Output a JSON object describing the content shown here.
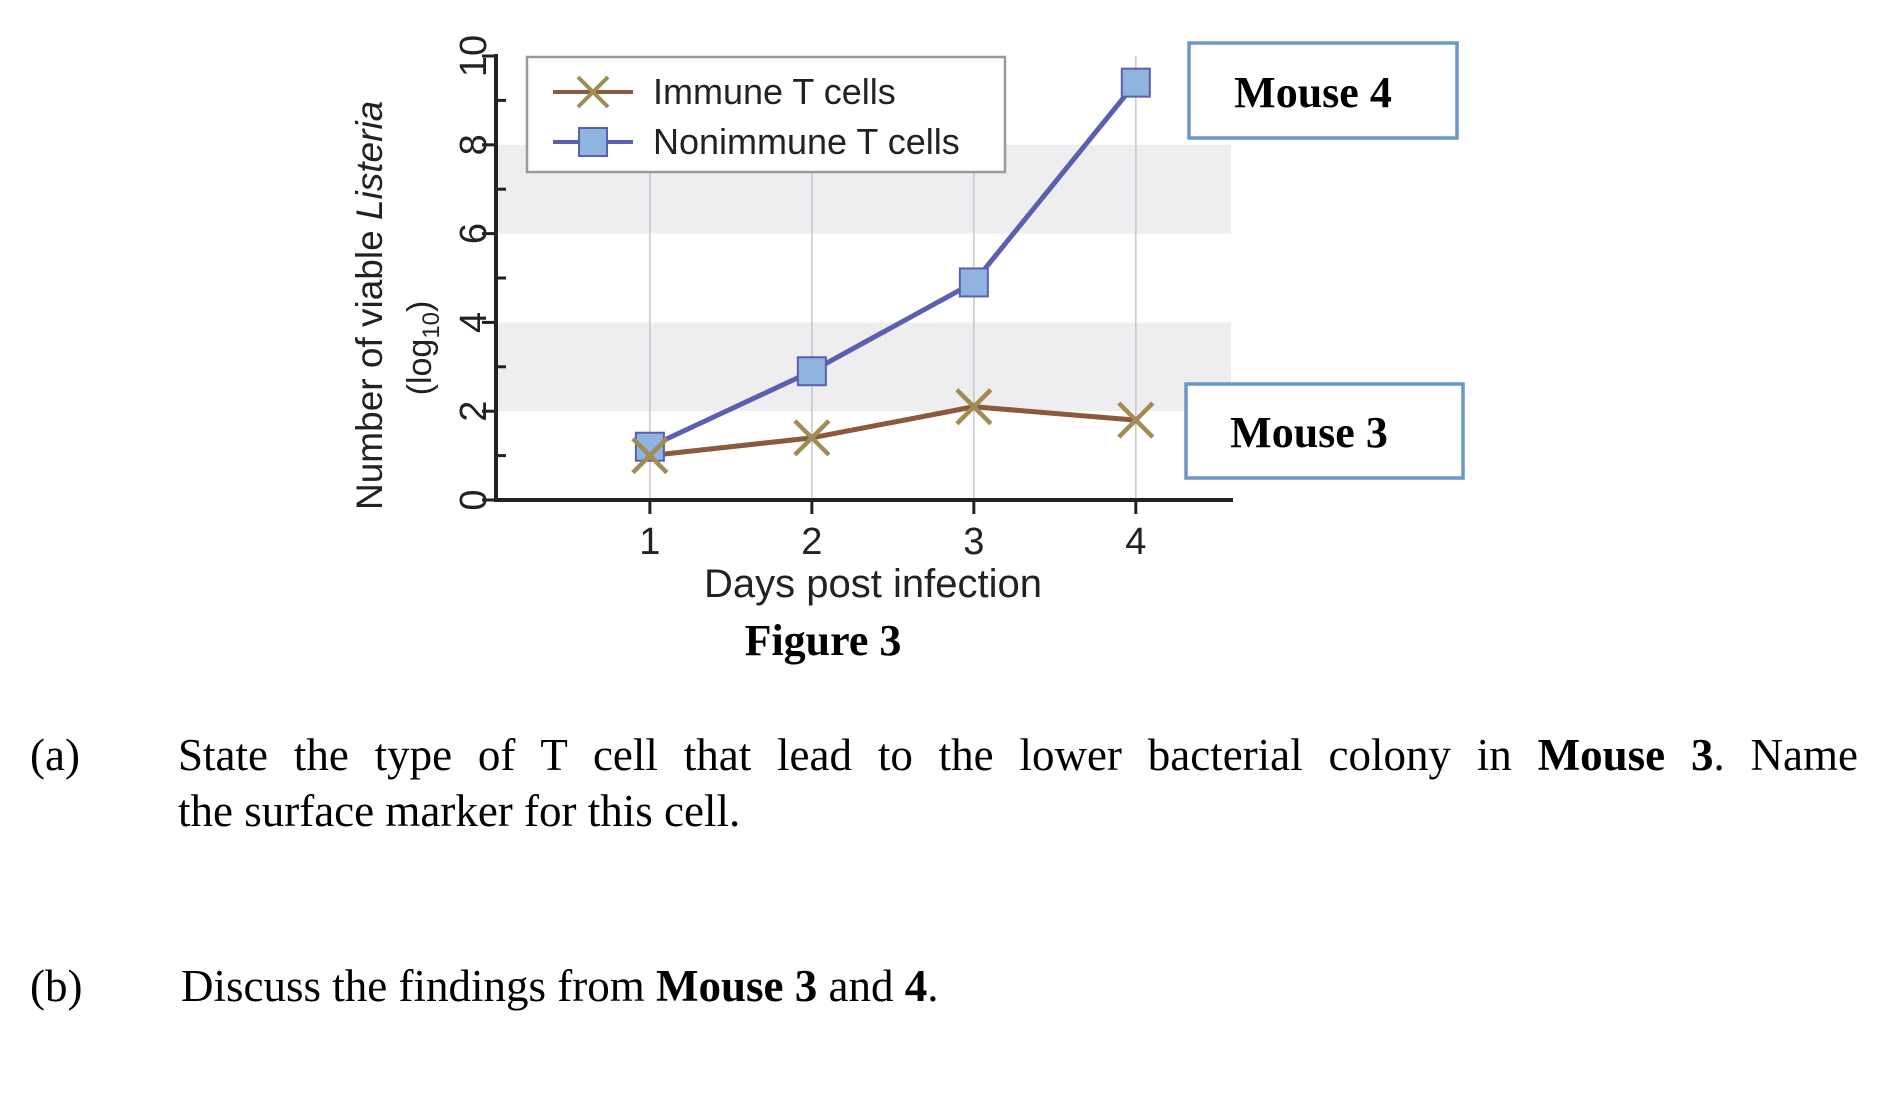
{
  "chart_data": {
    "type": "line",
    "x": [
      1,
      2,
      3,
      4
    ],
    "xticks": [
      "1",
      "2",
      "3",
      "4"
    ],
    "yticks": [
      "0",
      "2",
      "4",
      "6",
      "8",
      "10"
    ],
    "xlabel": "Days  post infection",
    "ylabel": {
      "prefix": "Number of viable ",
      "italic": "Listeria",
      "unit_prefix": "(log",
      "unit_sub": "10",
      "unit_suffix": ")"
    },
    "xlim": [
      0.05,
      4.6
    ],
    "ylim": [
      0,
      10
    ],
    "grid": "vertical lines at x ticks; shaded bands 2–4 and 6–8",
    "legend_position": "top-left",
    "series": [
      {
        "name": "Immune T cells",
        "marker": "x",
        "line_color": "#8B5A3C",
        "marker_color": "#A08C55",
        "values": [
          1.0,
          1.4,
          2.1,
          1.8
        ]
      },
      {
        "name": "Nonimmune T cells",
        "marker": "square",
        "line_color": "#5B5FB0",
        "marker_color": "#8FB4E0",
        "values": [
          1.2,
          2.9,
          4.9,
          9.4
        ]
      }
    ],
    "annotations": [
      {
        "label": "Mouse 4",
        "series": "Nonimmune T cells"
      },
      {
        "label": "Mouse 3",
        "series": "Immune T cells"
      }
    ],
    "caption": "Figure 3"
  },
  "questions": [
    {
      "number": "(a)",
      "line1_parts": [
        "State the type of T cell that lead to the lower bacterial colony in ",
        "Mouse 3",
        ". Name"
      ],
      "line2": "the surface marker for this cell."
    },
    {
      "number": "(b)",
      "parts": [
        "Discuss the findings from ",
        "Mouse 3",
        " and ",
        "4",
        "."
      ]
    }
  ],
  "colors": {
    "axis": "#222222",
    "band": "#EEEEF1",
    "grid": "#C8C8CC",
    "mouse_box_border": "#6C96C8"
  }
}
